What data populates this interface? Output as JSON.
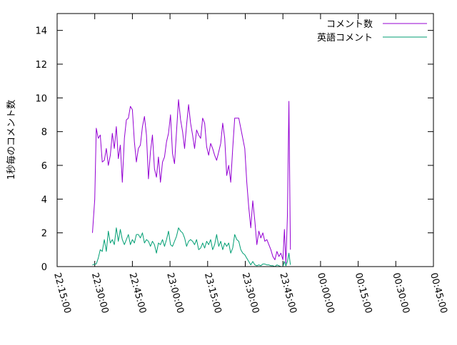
{
  "chart_data": {
    "type": "line",
    "title": "",
    "xlabel": "",
    "ylabel": "1秒毎のコメント数",
    "ylim": [
      0,
      15
    ],
    "y_ticks": [
      0,
      2,
      4,
      6,
      8,
      10,
      12,
      14
    ],
    "x_range_minutes": [
      -105,
      45
    ],
    "x_ticks": [
      {
        "label": "22:15:00",
        "value": -105
      },
      {
        "label": "22:30:00",
        "value": -90
      },
      {
        "label": "22:45:00",
        "value": -75
      },
      {
        "label": "23:00:00",
        "value": -60
      },
      {
        "label": "23:15:00",
        "value": -45
      },
      {
        "label": "23:30:00",
        "value": -30
      },
      {
        "label": "23:45:00",
        "value": -15
      },
      {
        "label": "00:00:00",
        "value": 0
      },
      {
        "label": "00:15:00",
        "value": 15
      },
      {
        "label": "00:30:00",
        "value": 30
      },
      {
        "label": "00:45:00",
        "value": 45
      }
    ],
    "grid": false,
    "legend_position": "top-right",
    "series": [
      {
        "name": "コメント数",
        "color": "#9400d3",
        "points": [
          [
            -90.9,
            2.0
          ],
          [
            -90.0,
            4.0
          ],
          [
            -89.4,
            8.2
          ],
          [
            -88.6,
            7.6
          ],
          [
            -87.8,
            7.8
          ],
          [
            -87.0,
            6.2
          ],
          [
            -86.2,
            6.3
          ],
          [
            -85.4,
            7.0
          ],
          [
            -84.6,
            6.0
          ],
          [
            -83.8,
            6.6
          ],
          [
            -83.0,
            7.9
          ],
          [
            -82.2,
            7.0
          ],
          [
            -81.4,
            8.3
          ],
          [
            -80.6,
            6.4
          ],
          [
            -79.8,
            7.2
          ],
          [
            -79.0,
            5.0
          ],
          [
            -78.2,
            7.6
          ],
          [
            -77.4,
            8.7
          ],
          [
            -76.6,
            8.8
          ],
          [
            -75.8,
            9.5
          ],
          [
            -75.0,
            9.3
          ],
          [
            -74.2,
            7.4
          ],
          [
            -73.4,
            6.2
          ],
          [
            -72.6,
            7.0
          ],
          [
            -71.8,
            7.2
          ],
          [
            -71.0,
            8.3
          ],
          [
            -70.2,
            8.9
          ],
          [
            -69.4,
            7.8
          ],
          [
            -68.6,
            5.2
          ],
          [
            -67.8,
            6.8
          ],
          [
            -67.0,
            7.8
          ],
          [
            -66.2,
            5.8
          ],
          [
            -65.4,
            5.3
          ],
          [
            -64.6,
            6.5
          ],
          [
            -63.8,
            5.0
          ],
          [
            -63.0,
            6.2
          ],
          [
            -62.2,
            6.5
          ],
          [
            -61.4,
            7.4
          ],
          [
            -60.6,
            7.9
          ],
          [
            -59.8,
            9.0
          ],
          [
            -59.0,
            6.7
          ],
          [
            -58.2,
            6.1
          ],
          [
            -57.4,
            8.0
          ],
          [
            -56.6,
            9.9
          ],
          [
            -55.8,
            8.7
          ],
          [
            -55.0,
            8.0
          ],
          [
            -54.2,
            7.0
          ],
          [
            -53.4,
            8.4
          ],
          [
            -52.6,
            9.6
          ],
          [
            -51.8,
            8.5
          ],
          [
            -51.0,
            7.8
          ],
          [
            -50.2,
            7.0
          ],
          [
            -49.4,
            8.1
          ],
          [
            -48.6,
            7.8
          ],
          [
            -47.8,
            7.6
          ],
          [
            -47.0,
            8.8
          ],
          [
            -46.2,
            8.5
          ],
          [
            -45.4,
            7.1
          ],
          [
            -44.6,
            6.6
          ],
          [
            -43.8,
            7.3
          ],
          [
            -43.0,
            7.0
          ],
          [
            -42.2,
            6.6
          ],
          [
            -41.4,
            6.3
          ],
          [
            -40.6,
            6.8
          ],
          [
            -39.8,
            7.3
          ],
          [
            -39.0,
            8.5
          ],
          [
            -38.2,
            7.6
          ],
          [
            -37.4,
            5.4
          ],
          [
            -36.6,
            6.0
          ],
          [
            -35.8,
            5.0
          ],
          [
            -35.0,
            7.0
          ],
          [
            -34.2,
            8.8
          ],
          [
            -33.4,
            8.8
          ],
          [
            -32.6,
            8.8
          ],
          [
            -31.8,
            8.2
          ],
          [
            -31.0,
            7.6
          ],
          [
            -30.2,
            7.0
          ],
          [
            -29.4,
            5.0
          ],
          [
            -28.6,
            3.5
          ],
          [
            -27.8,
            2.3
          ],
          [
            -27.0,
            3.9
          ],
          [
            -26.2,
            2.7
          ],
          [
            -25.4,
            1.3
          ],
          [
            -24.6,
            2.1
          ],
          [
            -23.8,
            1.7
          ],
          [
            -23.0,
            2.0
          ],
          [
            -22.2,
            1.5
          ],
          [
            -21.4,
            1.6
          ],
          [
            -20.6,
            1.3
          ],
          [
            -19.8,
            1.0
          ],
          [
            -19.0,
            0.6
          ],
          [
            -18.2,
            0.4
          ],
          [
            -17.4,
            0.9
          ],
          [
            -16.6,
            0.6
          ],
          [
            -15.8,
            0.8
          ],
          [
            -15.0,
            0.4
          ],
          [
            -14.4,
            2.2
          ],
          [
            -13.8,
            0.2
          ],
          [
            -13.2,
            3.0
          ],
          [
            -12.6,
            9.8
          ],
          [
            -12.0,
            1.0
          ]
        ]
      },
      {
        "name": "英語コメント",
        "color": "#009e73",
        "points": [
          [
            -90.9,
            0.1
          ],
          [
            -90.0,
            0.15
          ],
          [
            -89.4,
            0.15
          ],
          [
            -88.6,
            0.5
          ],
          [
            -87.8,
            1.0
          ],
          [
            -87.0,
            0.9
          ],
          [
            -86.2,
            1.6
          ],
          [
            -85.4,
            0.9
          ],
          [
            -84.6,
            2.1
          ],
          [
            -83.8,
            1.4
          ],
          [
            -83.0,
            1.6
          ],
          [
            -82.2,
            1.3
          ],
          [
            -81.4,
            2.3
          ],
          [
            -80.6,
            1.5
          ],
          [
            -79.8,
            2.2
          ],
          [
            -79.0,
            1.6
          ],
          [
            -78.2,
            1.3
          ],
          [
            -77.4,
            1.6
          ],
          [
            -76.6,
            1.9
          ],
          [
            -75.8,
            1.3
          ],
          [
            -75.0,
            1.6
          ],
          [
            -74.2,
            1.4
          ],
          [
            -73.4,
            1.9
          ],
          [
            -72.6,
            1.9
          ],
          [
            -71.8,
            1.7
          ],
          [
            -71.0,
            2.0
          ],
          [
            -70.2,
            1.4
          ],
          [
            -69.4,
            1.6
          ],
          [
            -68.6,
            1.5
          ],
          [
            -67.8,
            1.2
          ],
          [
            -67.0,
            1.5
          ],
          [
            -66.2,
            1.3
          ],
          [
            -65.4,
            0.8
          ],
          [
            -64.6,
            1.4
          ],
          [
            -63.8,
            1.3
          ],
          [
            -63.0,
            1.6
          ],
          [
            -62.2,
            1.2
          ],
          [
            -61.4,
            1.6
          ],
          [
            -60.6,
            2.1
          ],
          [
            -59.8,
            1.3
          ],
          [
            -59.0,
            1.2
          ],
          [
            -58.2,
            1.5
          ],
          [
            -57.4,
            1.8
          ],
          [
            -56.6,
            2.3
          ],
          [
            -55.8,
            2.1
          ],
          [
            -55.0,
            2.0
          ],
          [
            -54.2,
            1.7
          ],
          [
            -53.4,
            1.2
          ],
          [
            -52.6,
            1.5
          ],
          [
            -51.8,
            1.6
          ],
          [
            -51.0,
            1.5
          ],
          [
            -50.2,
            1.3
          ],
          [
            -49.4,
            1.6
          ],
          [
            -48.6,
            1.0
          ],
          [
            -47.8,
            1.1
          ],
          [
            -47.0,
            1.4
          ],
          [
            -46.2,
            1.1
          ],
          [
            -45.4,
            1.5
          ],
          [
            -44.6,
            1.3
          ],
          [
            -43.8,
            1.6
          ],
          [
            -43.0,
            1.0
          ],
          [
            -42.2,
            1.3
          ],
          [
            -41.4,
            1.9
          ],
          [
            -40.6,
            1.2
          ],
          [
            -39.8,
            1.5
          ],
          [
            -39.0,
            1.0
          ],
          [
            -38.2,
            1.4
          ],
          [
            -37.4,
            1.2
          ],
          [
            -36.6,
            1.4
          ],
          [
            -35.8,
            0.8
          ],
          [
            -35.0,
            1.1
          ],
          [
            -34.2,
            1.9
          ],
          [
            -33.4,
            1.6
          ],
          [
            -32.6,
            1.5
          ],
          [
            -31.8,
            1.0
          ],
          [
            -31.0,
            0.8
          ],
          [
            -30.2,
            0.7
          ],
          [
            -29.4,
            0.5
          ],
          [
            -28.6,
            0.3
          ],
          [
            -27.8,
            0.1
          ],
          [
            -27.0,
            0.3
          ],
          [
            -26.2,
            0.1
          ],
          [
            -25.4,
            0.05
          ],
          [
            -24.6,
            0.1
          ],
          [
            -23.8,
            0.05
          ],
          [
            -23.0,
            0.15
          ],
          [
            -22.2,
            0.15
          ],
          [
            -21.4,
            0.1
          ],
          [
            -20.6,
            0.1
          ],
          [
            -19.8,
            0.05
          ],
          [
            -19.0,
            0.05
          ],
          [
            -18.2,
            0.0
          ],
          [
            -17.4,
            0.1
          ],
          [
            -16.6,
            0.05
          ],
          [
            -15.8,
            0.0
          ],
          [
            -15.0,
            0.0
          ],
          [
            -14.4,
            0.3
          ],
          [
            -13.8,
            0.05
          ],
          [
            -13.2,
            0.3
          ],
          [
            -12.6,
            0.8
          ],
          [
            -12.0,
            0.1
          ]
        ]
      }
    ]
  }
}
